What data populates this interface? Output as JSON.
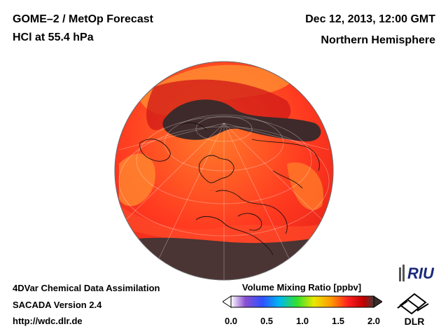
{
  "header": {
    "title": "GOME–2 / MetOp Forecast",
    "subtitle": "HCl at 55.4 hPa",
    "datetime": "Dec 12, 2013, 12:00 GMT",
    "region": "Northern Hemisphere"
  },
  "footer": {
    "line1": "4DVar Chemical Data Assimilation",
    "line2": "SACADA Version 2.4",
    "line3": "http://wdc.dlr.de"
  },
  "colorbar": {
    "label": "Volume Mixing Ratio [ppbv]",
    "ticks": [
      "0.0",
      "0.5",
      "1.0",
      "1.5",
      "2.0"
    ],
    "min": 0.0,
    "max": 2.0,
    "colors": [
      "#ffffff",
      "#8a4fd0",
      "#3050ff",
      "#00b8f0",
      "#30e030",
      "#e8e800",
      "#ff9a00",
      "#ff2020",
      "#c00000",
      "#4a3a3a"
    ]
  },
  "logos": {
    "riu": "RIU",
    "dlr": "DLR"
  },
  "map": {
    "projection": "orthographic",
    "field": "HCl",
    "pressure_level": "55.4 hPa"
  }
}
